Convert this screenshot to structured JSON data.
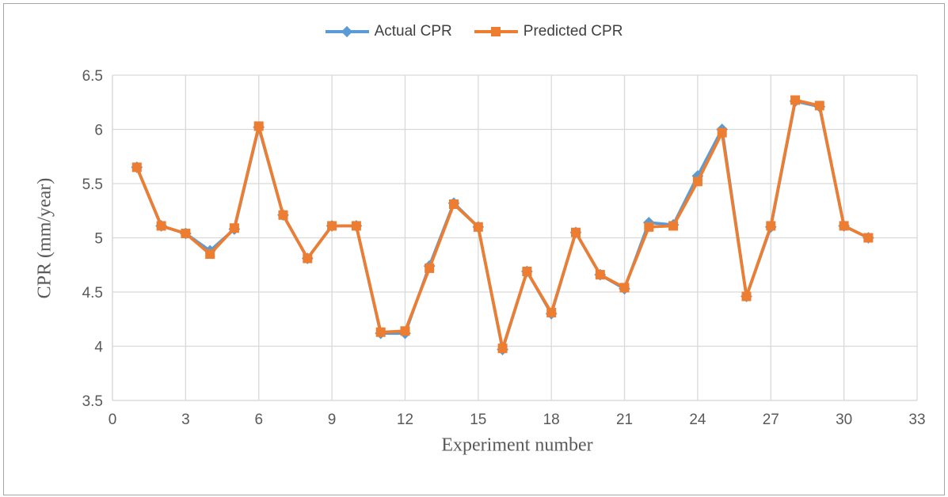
{
  "chart_data": {
    "type": "line",
    "title": "",
    "xlabel": "Experiment number",
    "ylabel": "CPR (mm/year)",
    "x": [
      1,
      2,
      3,
      4,
      5,
      6,
      7,
      8,
      9,
      10,
      11,
      12,
      13,
      14,
      15,
      16,
      17,
      18,
      19,
      20,
      21,
      22,
      23,
      24,
      25,
      26,
      27,
      28,
      29,
      30,
      31
    ],
    "series": [
      {
        "name": "Actual CPR",
        "color": "#5B9BD5",
        "marker": "diamond",
        "values": [
          5.65,
          5.11,
          5.04,
          4.88,
          5.08,
          6.02,
          5.21,
          4.81,
          5.11,
          5.11,
          4.12,
          4.12,
          4.74,
          5.32,
          5.1,
          3.97,
          4.69,
          4.3,
          5.05,
          4.66,
          4.53,
          5.14,
          5.12,
          5.57,
          6.0,
          4.46,
          5.1,
          6.26,
          6.21,
          5.11,
          5.0
        ]
      },
      {
        "name": "Predicted CPR",
        "color": "#ED7D31",
        "marker": "square",
        "values": [
          5.65,
          5.11,
          5.04,
          4.85,
          5.09,
          6.03,
          5.21,
          4.81,
          5.11,
          5.11,
          4.13,
          4.14,
          4.72,
          5.31,
          5.1,
          3.98,
          4.69,
          4.31,
          5.05,
          4.66,
          4.54,
          5.1,
          5.11,
          5.52,
          5.97,
          4.46,
          5.11,
          6.27,
          6.22,
          5.11,
          5.0
        ]
      }
    ],
    "xlim": [
      0,
      33
    ],
    "ylim": [
      3.5,
      6.5
    ],
    "x_ticks": [
      0,
      3,
      6,
      9,
      12,
      15,
      18,
      21,
      24,
      27,
      30,
      33
    ],
    "y_ticks": [
      3.5,
      4,
      4.5,
      5,
      5.5,
      6,
      6.5
    ],
    "grid": true,
    "legend_position": "top-center",
    "grid_color": "#D9D9D9",
    "axis_line_color": "#D9D9D9",
    "tick_color": "#595959",
    "axis_title_color": "#595959",
    "frame_border_color": "#A6A6A6",
    "background": "#FFFFFF"
  }
}
